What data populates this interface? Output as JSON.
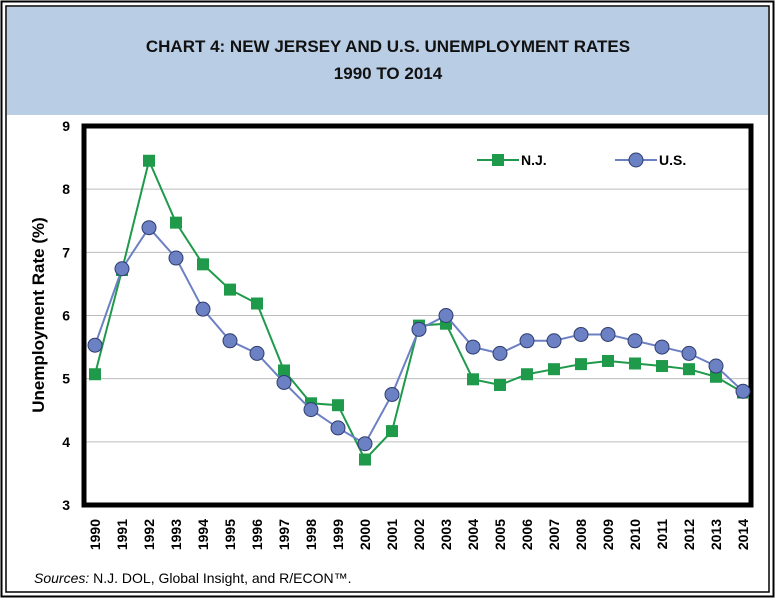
{
  "chart_data": {
    "type": "line",
    "title": "CHART 4:  NEW JERSEY AND U.S. UNEMPLOYMENT RATES",
    "subtitle": "1990 TO 2014",
    "y_label": "Unemployment Rate (%)",
    "categories": [
      "1990",
      "1991",
      "1992",
      "1993",
      "1994",
      "1995",
      "1996",
      "1997",
      "1998",
      "1999",
      "2000",
      "2001",
      "2002",
      "2003",
      "2004",
      "2005",
      "2006",
      "2007",
      "2008",
      "2009",
      "2010",
      "2011",
      "2012",
      "2013",
      "2014"
    ],
    "series": [
      {
        "name": "N.J.",
        "color": "#1f9a4b",
        "marker": "square",
        "values": [
          5.07,
          6.72,
          8.45,
          7.47,
          6.81,
          6.41,
          6.19,
          5.13,
          4.61,
          4.58,
          3.72,
          4.17,
          5.84,
          5.87,
          4.99,
          4.9,
          5.07,
          5.15,
          5.23,
          5.28,
          5.24,
          5.2,
          5.15,
          5.03,
          4.78
        ]
      },
      {
        "name": "U.S.",
        "color": "#6c80c4",
        "marker": "circle",
        "values": [
          5.53,
          6.74,
          7.39,
          6.91,
          6.1,
          5.6,
          5.4,
          4.94,
          4.51,
          4.22,
          3.97,
          4.75,
          5.78,
          6.0,
          5.5,
          5.4,
          5.6,
          5.6,
          5.7,
          5.7,
          5.6,
          5.5,
          5.4,
          5.2,
          4.8
        ]
      }
    ],
    "ylim": [
      3,
      9
    ],
    "yticks": [
      3,
      4,
      5,
      6,
      7,
      8,
      9
    ],
    "grid": true,
    "legend": "top-right",
    "source_label": "Sources:",
    "source_text": "N.J. DOL, Global Insight, and R/ECON™."
  }
}
